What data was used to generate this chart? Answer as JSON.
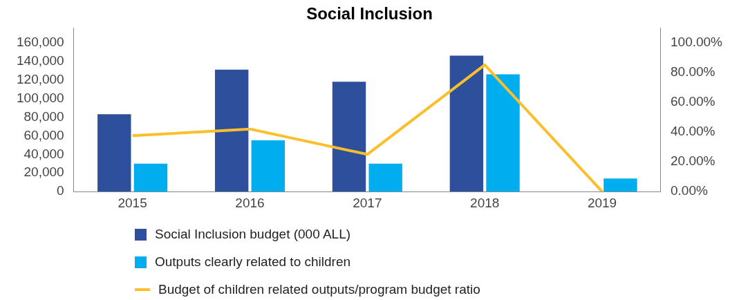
{
  "chart_data": {
    "type": "bar",
    "title": "Social Inclusion",
    "categories": [
      "2015",
      "2016",
      "2017",
      "2018",
      "2019"
    ],
    "series": [
      {
        "name": "Social Inclusion budget (000 ALL)",
        "color": "#2e4f9c",
        "values": [
          83000,
          131000,
          118000,
          146000,
          null
        ]
      },
      {
        "name": "Outputs clearly related to children",
        "color": "#00adef",
        "values": [
          30000,
          55000,
          30000,
          126000,
          14000
        ]
      },
      {
        "name": "Budget of children related outputs/program budget ratio",
        "type": "line",
        "axis": "y2",
        "color": "#fbbf2c",
        "values": [
          37.5,
          42,
          25,
          85,
          0
        ]
      }
    ],
    "ylim": [
      0,
      176000
    ],
    "yticks": [
      {
        "value": 0,
        "label": "0"
      },
      {
        "value": 20000,
        "label": "20,000"
      },
      {
        "value": 40000,
        "label": "40,000"
      },
      {
        "value": 60000,
        "label": "60,000"
      },
      {
        "value": 80000,
        "label": "80,000"
      },
      {
        "value": 100000,
        "label": "100,000"
      },
      {
        "value": 120000,
        "label": "120,000"
      },
      {
        "value": 140000,
        "label": "140,000"
      },
      {
        "value": 160000,
        "label": "160,000"
      }
    ],
    "y2lim": [
      0,
      110
    ],
    "y2ticks": [
      {
        "value": 0,
        "label": "0.00%"
      },
      {
        "value": 20,
        "label": "20.00%"
      },
      {
        "value": 40,
        "label": "40.00%"
      },
      {
        "value": 60,
        "label": "60.00%"
      },
      {
        "value": 80,
        "label": "80.00%"
      },
      {
        "value": 100,
        "label": "100.00%"
      }
    ],
    "grid": false,
    "legend": "bottom",
    "marker": "none",
    "line_style": "solid"
  }
}
